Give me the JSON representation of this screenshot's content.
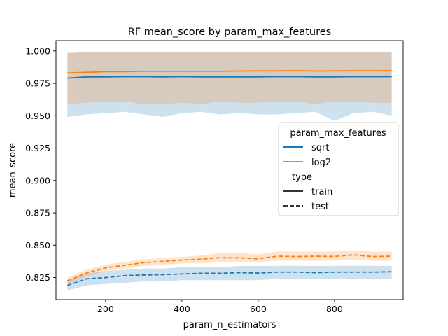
{
  "chart_data": {
    "type": "line",
    "title": "RF mean_score by param_max_features",
    "xlabel": "param_n_estimators",
    "ylabel": "mean_score",
    "xlim": [
      70,
      980
    ],
    "ylim": [
      0.808,
      1.008
    ],
    "xticks": [
      200,
      400,
      600,
      800
    ],
    "yticks": [
      0.825,
      0.85,
      0.875,
      0.9,
      0.925,
      0.95,
      0.975,
      1.0
    ],
    "x": [
      100,
      150,
      200,
      250,
      300,
      350,
      400,
      450,
      500,
      550,
      600,
      650,
      700,
      750,
      800,
      850,
      900,
      950
    ],
    "series": [
      {
        "name": "sqrt",
        "type": "train",
        "color": "#1f77b4",
        "style": "solid",
        "values": [
          0.979,
          0.98,
          0.98,
          0.9802,
          0.9802,
          0.98,
          0.9802,
          0.98,
          0.98,
          0.98,
          0.98,
          0.9802,
          0.9802,
          0.98,
          0.98,
          0.9802,
          0.9802,
          0.9802
        ],
        "lower": [
          0.949,
          0.951,
          0.952,
          0.953,
          0.951,
          0.949,
          0.952,
          0.953,
          0.951,
          0.952,
          0.951,
          0.951,
          0.952,
          0.953,
          0.946,
          0.952,
          0.953,
          0.95
        ],
        "upper": [
          0.998,
          0.999,
          0.999,
          0.999,
          0.999,
          0.999,
          0.999,
          0.999,
          0.999,
          0.999,
          0.999,
          0.999,
          0.999,
          0.999,
          0.999,
          0.999,
          0.999,
          0.999
        ]
      },
      {
        "name": "log2",
        "type": "train",
        "color": "#ff7f0e",
        "style": "solid",
        "values": [
          0.983,
          0.9835,
          0.984,
          0.984,
          0.9843,
          0.9843,
          0.9843,
          0.9843,
          0.9843,
          0.9845,
          0.9846,
          0.9846,
          0.9848,
          0.9845,
          0.9846,
          0.9847,
          0.9847,
          0.9848
        ],
        "lower": [
          0.959,
          0.96,
          0.961,
          0.961,
          0.959,
          0.959,
          0.96,
          0.959,
          0.961,
          0.96,
          0.96,
          0.961,
          0.961,
          0.959,
          0.961,
          0.961,
          0.96,
          0.96
        ],
        "upper": [
          0.999,
          0.9995,
          0.9995,
          0.9995,
          0.9995,
          0.9995,
          0.9995,
          0.9995,
          0.9995,
          0.9995,
          0.9995,
          0.9995,
          0.9995,
          0.9995,
          0.9995,
          0.9995,
          0.9995,
          0.9995
        ]
      },
      {
        "name": "sqrt",
        "type": "test",
        "color": "#1f77b4",
        "style": "dashed",
        "values": [
          0.819,
          0.824,
          0.825,
          0.8265,
          0.827,
          0.8272,
          0.8278,
          0.8283,
          0.8283,
          0.8288,
          0.8285,
          0.8292,
          0.8292,
          0.8288,
          0.8292,
          0.8292,
          0.8292,
          0.8295
        ],
        "lower": [
          0.815,
          0.819,
          0.82,
          0.821,
          0.822,
          0.822,
          0.823,
          0.823,
          0.823,
          0.823,
          0.823,
          0.824,
          0.824,
          0.824,
          0.824,
          0.824,
          0.824,
          0.824
        ],
        "upper": [
          0.823,
          0.828,
          0.83,
          0.831,
          0.832,
          0.832,
          0.833,
          0.833,
          0.833,
          0.834,
          0.834,
          0.834,
          0.834,
          0.834,
          0.834,
          0.834,
          0.834,
          0.834
        ]
      },
      {
        "name": "log2",
        "type": "test",
        "color": "#ff7f0e",
        "style": "dashed",
        "values": [
          0.8225,
          0.8285,
          0.8325,
          0.8345,
          0.8365,
          0.8375,
          0.8385,
          0.8392,
          0.8403,
          0.8402,
          0.8395,
          0.8415,
          0.8412,
          0.8415,
          0.8413,
          0.8425,
          0.8412,
          0.8415
        ],
        "lower": [
          0.82,
          0.826,
          0.83,
          0.832,
          0.834,
          0.835,
          0.836,
          0.836,
          0.837,
          0.837,
          0.837,
          0.838,
          0.838,
          0.838,
          0.838,
          0.839,
          0.838,
          0.838
        ],
        "upper": [
          0.825,
          0.831,
          0.835,
          0.837,
          0.839,
          0.84,
          0.841,
          0.842,
          0.844,
          0.844,
          0.843,
          0.845,
          0.845,
          0.845,
          0.845,
          0.846,
          0.845,
          0.845
        ]
      }
    ],
    "legend": {
      "position": "center-right",
      "title": "param_max_features",
      "entries": [
        "sqrt",
        "log2"
      ],
      "style_title": "type",
      "style_entries": [
        "train",
        "test"
      ]
    }
  }
}
